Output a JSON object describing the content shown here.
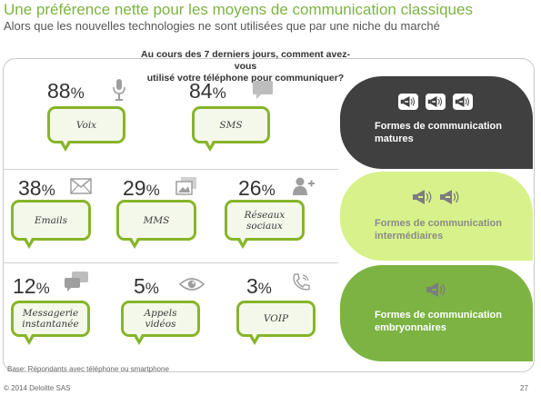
{
  "title": "Une préférence nette pour les moyens de communication classiques",
  "subtitle": "Alors que les nouvelles technologies ne sont utilisées que par une niche du marché",
  "question_line1": "Au cours des 7 derniers jours, comment avez-vous",
  "question_line2": "utilisé votre téléphone pour communiquer?",
  "chart_data": {
    "type": "bar",
    "title": "Au cours des 7 derniers jours, comment avez-vous utilisé votre téléphone pour communiquer?",
    "categories": [
      "Voix",
      "SMS",
      "Emails",
      "MMS",
      "Réseaux sociaux",
      "Messagerie instantanée",
      "Appels vidéos",
      "VOIP"
    ],
    "values": [
      88,
      84,
      38,
      29,
      26,
      12,
      5,
      3
    ],
    "unit": "%",
    "items": [
      {
        "value": 88,
        "pct_text": "88",
        "label": "Voix",
        "label_lines": [
          "Voix"
        ],
        "icon": "microphone-icon",
        "group": 0
      },
      {
        "value": 84,
        "pct_text": "84",
        "label": "SMS",
        "label_lines": [
          "SMS"
        ],
        "icon": "speech-bubble-icon",
        "group": 0
      },
      {
        "value": 38,
        "pct_text": "38",
        "label": "Emails",
        "label_lines": [
          "Emails"
        ],
        "icon": "envelope-icon",
        "group": 1
      },
      {
        "value": 29,
        "pct_text": "29",
        "label": "MMS",
        "label_lines": [
          "MMS"
        ],
        "icon": "pictures-icon",
        "group": 1
      },
      {
        "value": 26,
        "pct_text": "26",
        "label": "Réseaux sociaux",
        "label_lines": [
          "Réseaux",
          "sociaux"
        ],
        "icon": "add-user-icon",
        "group": 1
      },
      {
        "value": 12,
        "pct_text": "12",
        "label": "Messagerie instantanée",
        "label_lines": [
          "Messagerie",
          "instantanée"
        ],
        "icon": "chat-bubbles-icon",
        "group": 2
      },
      {
        "value": 5,
        "pct_text": "5",
        "label": "Appels vidéos",
        "label_lines": [
          "Appels",
          "vidéos"
        ],
        "icon": "eye-icon",
        "group": 2
      },
      {
        "value": 3,
        "pct_text": "3",
        "label": "VOIP",
        "label_lines": [
          "VOIP"
        ],
        "icon": "phone-icon",
        "group": 2
      }
    ],
    "groups": [
      {
        "line1": "Formes de communication",
        "line2": "matures",
        "color": "#404040",
        "text_color": "#ffffff",
        "megaphones": 3
      },
      {
        "line1": "Formes de communication",
        "line2": "intermédiaires",
        "color": "#d7f28a",
        "text_color": "#8a8a8a",
        "megaphones": 2
      },
      {
        "line1": "Formes de communication",
        "line2": "embryonnaires",
        "color": "#7cb342",
        "text_color": "#ffffff",
        "megaphones": 1
      }
    ]
  },
  "base_note": "Base: Répondants avec téléphone ou smartphone",
  "footer": "© 2014 Deloitte SAS",
  "page_number": "27",
  "colors": {
    "accent": "#7cb342",
    "bubble_border": "#86b52a",
    "icon_gray": "#9e9e9e"
  }
}
